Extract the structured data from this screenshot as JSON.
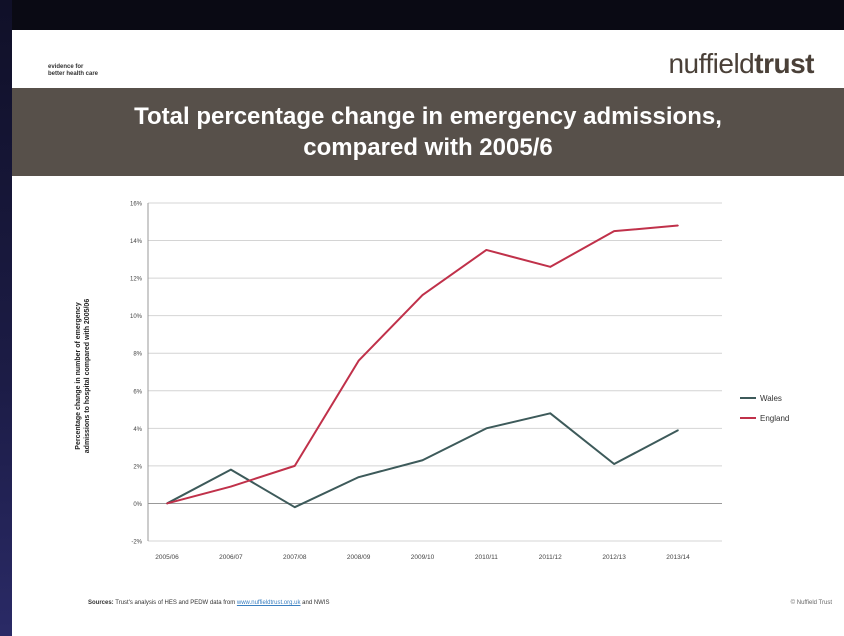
{
  "header": {
    "tagline_line1": "evidence for",
    "tagline_line2": "better health care",
    "logo_light": "nuffield",
    "logo_bold": "trust"
  },
  "banner": {
    "title_line1": "Total percentage change in emergency admissions,",
    "title_line2": "compared with 2005/6"
  },
  "colors": {
    "wales": "#3d5a5a",
    "england": "#c0314a",
    "banner": "#57504a"
  },
  "chart_data": {
    "type": "line",
    "title": "Total percentage change in emergency admissions, compared with 2005/6",
    "ylabel_line1": "Percentage change in number of emergency",
    "ylabel_line2": "admissions to hospital compared with 2005/06",
    "xlabel": "",
    "categories": [
      "2005/06",
      "2006/07",
      "2007/08",
      "2008/09",
      "2009/10",
      "2010/11",
      "2011/12",
      "2012/13",
      "2013/14"
    ],
    "yticks": [
      -2,
      0,
      2,
      4,
      6,
      8,
      10,
      12,
      14,
      16
    ],
    "ytick_labels": [
      "-2%",
      "0%",
      "2%",
      "4%",
      "6%",
      "8%",
      "10%",
      "12%",
      "14%",
      "16%"
    ],
    "ylim": [
      -2,
      16
    ],
    "grid": true,
    "legend_position": "right",
    "series": [
      {
        "name": "Wales",
        "values": [
          0,
          1.8,
          -0.2,
          1.4,
          2.3,
          4.0,
          4.8,
          2.1,
          3.9
        ]
      },
      {
        "name": "England",
        "values": [
          0,
          0.9,
          2.0,
          7.6,
          11.1,
          13.5,
          12.6,
          14.5,
          14.8
        ]
      }
    ]
  },
  "footer": {
    "sources_label": "Sources:",
    "sources_text": "Trust's analysis of HES and PEDW data from",
    "sources_link": "www.nuffieldtrust.org.uk",
    "sources_tail": "and NWIS",
    "copyright": "© Nuffield Trust"
  }
}
